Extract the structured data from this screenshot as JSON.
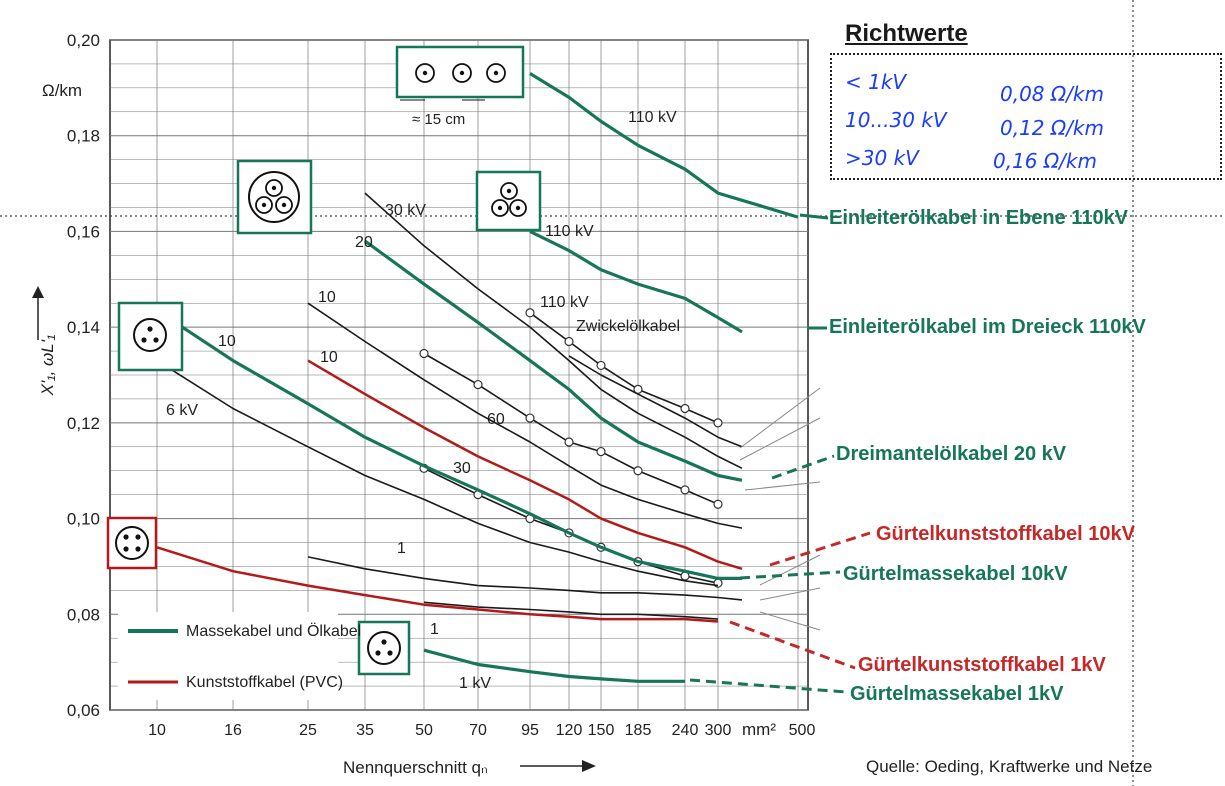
{
  "chart_data": {
    "type": "line",
    "ylabel": "X'₁, ωL'₁",
    "yunit": "Ω/km",
    "xlabel": "Nennquerschnitt qₙ",
    "xunit": "mm²",
    "x_categories": [
      "10",
      "16",
      "25",
      "35",
      "50",
      "70",
      "95",
      "120",
      "150",
      "185",
      "240",
      "300",
      "500"
    ],
    "y_ticks": [
      "0,06",
      "0,08",
      "0,10",
      "0,12",
      "0,14",
      "0,16",
      "0,18",
      "0,20"
    ],
    "ylim": [
      0.06,
      0.2
    ],
    "grid": true,
    "legend": [
      {
        "label": "Massekabel und Ölkabel",
        "color": "#17755a"
      },
      {
        "label": "Kunststoffkabel (PVC)",
        "color": "#b31b1b"
      }
    ],
    "series": [
      {
        "name": "110 kV",
        "kind": "mass",
        "x": [
          95,
          120,
          150,
          185,
          240,
          300,
          500
        ],
        "y": [
          0.193,
          0.188,
          0.183,
          0.178,
          0.173,
          0.168,
          0.163
        ]
      },
      {
        "name": "110 kV",
        "kind": "mass",
        "x": [
          95,
          120,
          150,
          185,
          240,
          300,
          400
        ],
        "y": [
          0.16,
          0.156,
          0.152,
          0.149,
          0.146,
          0.142,
          0.139
        ]
      },
      {
        "name": "110 kV",
        "kind": "black",
        "marked": true,
        "x": [
          95,
          120,
          150,
          185,
          240,
          300
        ],
        "y": [
          0.143,
          0.137,
          0.132,
          0.127,
          0.123,
          0.12
        ]
      },
      {
        "name": "",
        "kind": "black",
        "x": [
          120,
          150,
          185,
          240,
          300,
          400
        ],
        "y": [
          0.134,
          0.13,
          0.126,
          0.121,
          0.117,
          0.115
        ]
      },
      {
        "name": "30 kV",
        "kind": "black",
        "x": [
          35,
          50,
          70,
          95,
          120,
          150,
          185,
          240,
          300,
          400
        ],
        "y": [
          0.168,
          0.157,
          0.148,
          0.14,
          0.133,
          0.127,
          0.122,
          0.117,
          0.113,
          0.1105
        ]
      },
      {
        "name": "20",
        "kind": "mass",
        "x": [
          35,
          50,
          70,
          95,
          120,
          150,
          185,
          240,
          300,
          400
        ],
        "y": [
          0.158,
          0.149,
          0.141,
          0.133,
          0.127,
          0.121,
          0.116,
          0.112,
          0.109,
          0.108
        ]
      },
      {
        "name": "60",
        "kind": "black",
        "marked": true,
        "x": [
          50,
          70,
          95,
          120,
          150,
          185,
          240,
          300
        ],
        "y": [
          0.1345,
          0.128,
          0.121,
          0.116,
          0.114,
          0.11,
          0.106,
          0.103
        ]
      },
      {
        "name": "10",
        "kind": "black",
        "x": [
          25,
          35,
          50,
          70,
          95,
          120,
          150,
          185,
          240,
          300,
          400
        ],
        "y": [
          0.145,
          0.137,
          0.129,
          0.122,
          0.116,
          0.111,
          0.107,
          0.104,
          0.101,
          0.099,
          0.098
        ]
      },
      {
        "name": "10",
        "kind": "pvc",
        "x": [
          25,
          35,
          50,
          70,
          95,
          120,
          150,
          185,
          240,
          300,
          400
        ],
        "y": [
          0.133,
          0.126,
          0.119,
          0.113,
          0.108,
          0.104,
          0.1,
          0.097,
          0.094,
          0.091,
          0.0895
        ]
      },
      {
        "name": "30",
        "kind": "black",
        "marked": true,
        "x": [
          50,
          70,
          95,
          120,
          150,
          185,
          240,
          300
        ],
        "y": [
          0.1105,
          0.105,
          0.1,
          0.097,
          0.094,
          0.091,
          0.088,
          0.0865
        ]
      },
      {
        "name": "10",
        "kind": "mass",
        "x": [
          10,
          16,
          25,
          35,
          50,
          70,
          95,
          120,
          150,
          185,
          240,
          300,
          400
        ],
        "y": [
          0.1435,
          0.133,
          0.124,
          0.117,
          0.111,
          0.106,
          0.101,
          0.097,
          0.094,
          0.091,
          0.089,
          0.0875,
          0.0875
        ]
      },
      {
        "name": "6 kV",
        "kind": "black",
        "x": [
          10,
          16,
          25,
          35,
          50,
          70,
          95,
          120,
          150,
          185,
          240,
          300
        ],
        "y": [
          0.133,
          0.123,
          0.115,
          0.109,
          0.104,
          0.099,
          0.095,
          0.093,
          0.091,
          0.089,
          0.087,
          0.086
        ]
      },
      {
        "name": "1",
        "kind": "black",
        "x": [
          25,
          35,
          50,
          70,
          95,
          120,
          150,
          185,
          240,
          300,
          400
        ],
        "y": [
          0.092,
          0.0895,
          0.0875,
          0.086,
          0.0855,
          0.085,
          0.0845,
          0.0845,
          0.084,
          0.0835,
          0.083
        ]
      },
      {
        "name": "1",
        "kind": "black",
        "x": [
          50,
          70,
          95,
          120,
          150,
          185,
          240,
          300
        ],
        "y": [
          0.0825,
          0.0815,
          0.081,
          0.0805,
          0.08,
          0.08,
          0.0795,
          0.079
        ]
      },
      {
        "name": "",
        "kind": "pvc",
        "x": [
          10,
          16,
          25,
          35,
          50,
          70,
          95,
          120,
          150,
          185,
          240,
          300
        ],
        "y": [
          0.094,
          0.089,
          0.086,
          0.084,
          0.082,
          0.081,
          0.08,
          0.0795,
          0.079,
          0.079,
          0.079,
          0.0785
        ]
      },
      {
        "name": "1 kV",
        "kind": "mass",
        "x": [
          50,
          70,
          95,
          120,
          150,
          185,
          240
        ],
        "y": [
          0.0725,
          0.0695,
          0.068,
          0.067,
          0.0665,
          0.066,
          0.066
        ]
      }
    ],
    "annotations": {
      "spacing": "≈ 15 cm",
      "cable_label": "Zwickelölkabel"
    },
    "callouts": [
      {
        "text": "Einleiterölkabel  in Ebene 110kV",
        "color": "#17755a"
      },
      {
        "text": "Einleiterölkabel  im Dreieck 110kV",
        "color": "#17755a"
      },
      {
        "text": "Dreimantelölkabel  20 kV",
        "color": "#17755a"
      },
      {
        "text": "Gürtelkunststoffkabel  10kV",
        "color": "#c62828"
      },
      {
        "text": "Gürtelmassekabel 10kV",
        "color": "#17755a"
      },
      {
        "text": "Gürtelkunststoffkabel  1kV",
        "color": "#c62828"
      },
      {
        "text": "Gürtelmassekabel  1kV",
        "color": "#17755a"
      }
    ]
  },
  "richtwerte": {
    "title": "Richtwerte",
    "rows": [
      {
        "range": "< 1kV",
        "value": "0,08 Ω/km"
      },
      {
        "range": "10...30 kV",
        "value": "0,12 Ω/km"
      },
      {
        "range": ">30 kV",
        "value": "0,16 Ω/km"
      }
    ]
  },
  "source": "Quelle: Oeding, Kraftwerke und Netze",
  "colors": {
    "mass": "#17755a",
    "pvc": "#b31b1b",
    "black": "#1a1a1a",
    "grid": "#777777",
    "callout_pvc": "#c62828",
    "handwriting": "#1a3cff"
  }
}
